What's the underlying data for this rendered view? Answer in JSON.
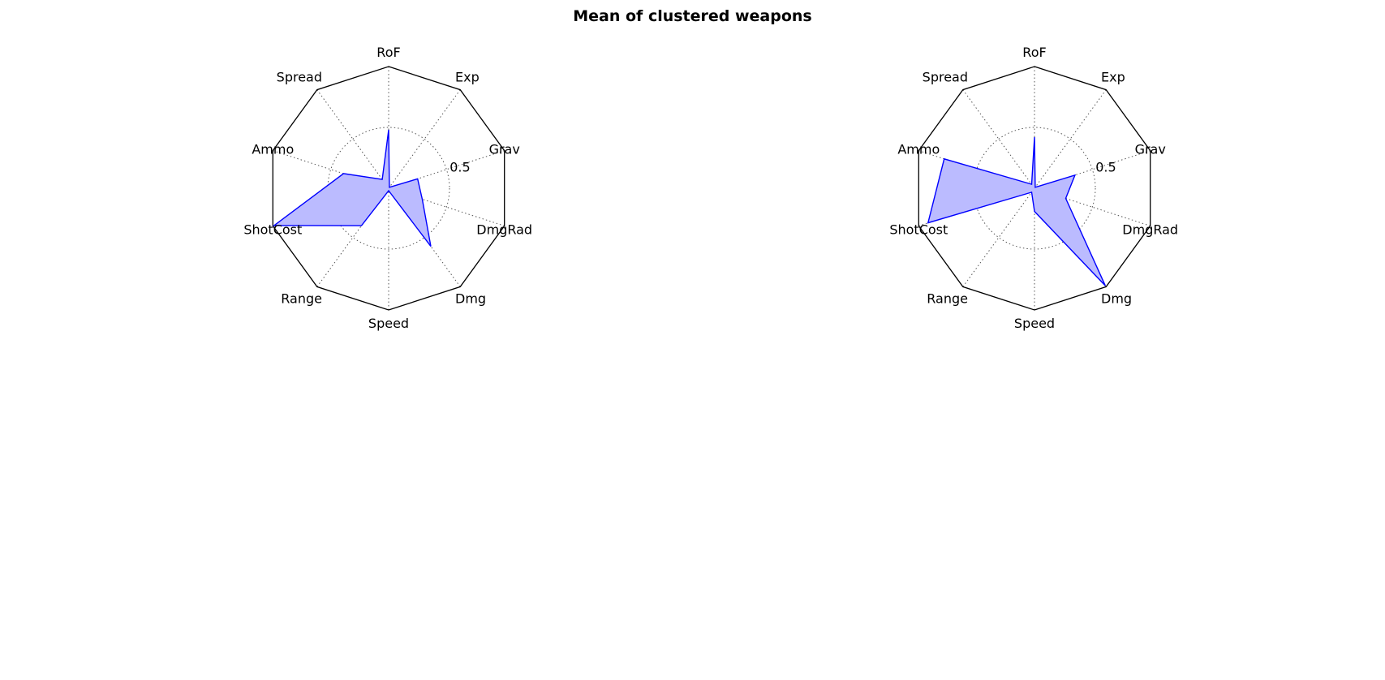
{
  "figure": {
    "title": "Mean of clustered weapons"
  },
  "chart_data": [
    {
      "type": "radar",
      "axes": [
        "RoF",
        "Exp",
        "Grav",
        "DmgRad",
        "Dmg",
        "Speed",
        "Range",
        "ShotCost",
        "Ammo",
        "Spread"
      ],
      "rlim": [
        0,
        1
      ],
      "rticks": [
        0.5
      ],
      "rtick_labels": [
        "0.5"
      ],
      "grid": true,
      "series": [
        {
          "values": [
            0.48,
            0.01,
            0.25,
            0.29,
            0.59,
            0.02,
            0.38,
            0.99,
            0.39,
            0.09
          ]
        }
      ],
      "colors": {
        "line": "#0000ff",
        "fill": "#bbbbff"
      }
    },
    {
      "type": "radar",
      "axes": [
        "RoF",
        "Exp",
        "Grav",
        "DmgRad",
        "Dmg",
        "Speed",
        "Range",
        "ShotCost",
        "Ammo",
        "Spread"
      ],
      "rlim": [
        0,
        1
      ],
      "rticks": [
        0.5
      ],
      "rtick_labels": [
        "0.5"
      ],
      "grid": true,
      "series": [
        {
          "values": [
            0.42,
            0.01,
            0.35,
            0.27,
            0.99,
            0.19,
            0.04,
            0.92,
            0.78,
            0.04
          ]
        }
      ],
      "colors": {
        "line": "#0000ff",
        "fill": "#bbbbff"
      }
    }
  ]
}
